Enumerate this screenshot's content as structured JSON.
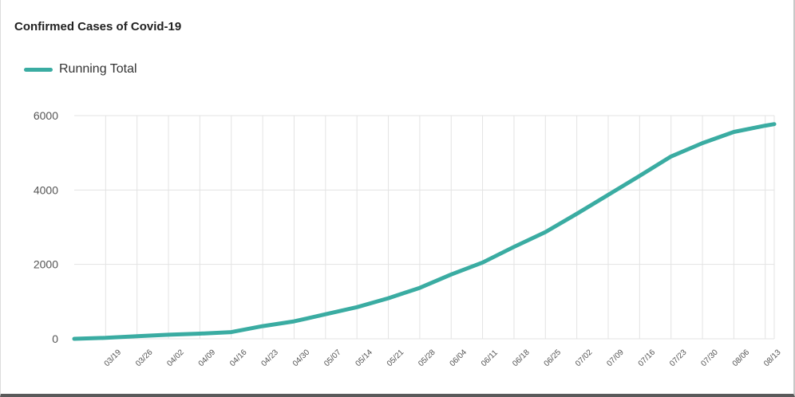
{
  "colors": {
    "series": "#3aaca2",
    "grid": "#e3e3e3",
    "axis": "#cccccc"
  },
  "chart_data": {
    "type": "line",
    "title": "Confirmed Cases of Covid-19",
    "xlabel": "",
    "ylabel": "",
    "ylim": [
      0,
      6000
    ],
    "yticks": [
      0,
      2000,
      4000,
      6000
    ],
    "grid": true,
    "legend_position": "top-left",
    "x_ticks": [
      "03/19",
      "03/26",
      "04/02",
      "04/09",
      "04/16",
      "04/23",
      "04/30",
      "05/07",
      "05/14",
      "05/21",
      "05/28",
      "06/04",
      "06/11",
      "06/18",
      "06/25",
      "07/02",
      "07/09",
      "07/16",
      "07/23",
      "07/30",
      "08/06",
      "08/13"
    ],
    "x": [
      "03/12",
      "03/19",
      "03/26",
      "04/02",
      "04/09",
      "04/16",
      "04/23",
      "04/30",
      "05/07",
      "05/14",
      "05/21",
      "05/28",
      "06/04",
      "06/11",
      "06/18",
      "06/25",
      "07/02",
      "07/09",
      "07/16",
      "07/23",
      "07/30",
      "08/06",
      "08/13",
      "08/15"
    ],
    "series": [
      {
        "name": "Running Total",
        "values": [
          0,
          25,
          70,
          110,
          140,
          180,
          340,
          470,
          660,
          850,
          1090,
          1370,
          1730,
          2050,
          2470,
          2870,
          3360,
          3870,
          4380,
          4900,
          5260,
          5560,
          5730,
          5770
        ]
      }
    ]
  }
}
